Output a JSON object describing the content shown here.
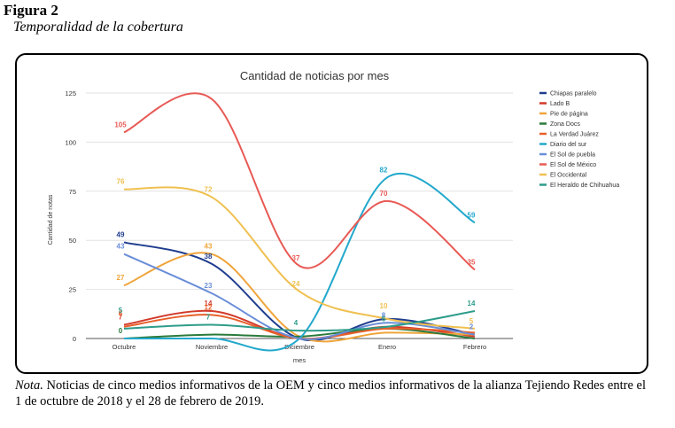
{
  "figure": {
    "label": "Figura 2",
    "subtitle": "Temporalidad de la cobertura"
  },
  "note": {
    "prefix": "Nota.",
    "text": " Noticias de cinco medios informativos de la OEM y cinco medios informativos de la alianza Tejiendo Redes entre el 1 de octubre de 2018 y el 28 de febrero de 2019."
  },
  "chart_data": {
    "type": "line",
    "title": "Cantidad de noticias por mes",
    "xlabel": "mes",
    "ylabel": "Cantidad de notas",
    "categories": [
      "Octubre",
      "Noviembre",
      "Diciembre",
      "Enero",
      "Febrero"
    ],
    "ylim": [
      0,
      125
    ],
    "yticks": [
      0,
      25,
      50,
      75,
      100,
      125
    ],
    "grid": true,
    "legend_position": "right",
    "series": [
      {
        "name": "Chiapas paralelo",
        "color": "#1f3d8f",
        "values": [
          49,
          38,
          0,
          10,
          2
        ],
        "labels": [
          true,
          true,
          false,
          false,
          false
        ]
      },
      {
        "name": "Lado B",
        "color": "#d23a2a",
        "values": [
          7,
          14,
          0,
          6,
          1
        ],
        "labels": [
          true,
          true,
          false,
          false,
          false
        ]
      },
      {
        "name": "Pie de página",
        "color": "#f0a43a",
        "values": [
          27,
          43,
          1,
          3,
          2
        ],
        "labels": [
          true,
          true,
          false,
          false,
          false
        ]
      },
      {
        "name": "Zona Docs",
        "color": "#2a7a3a",
        "values": [
          0,
          2,
          1,
          5,
          0
        ],
        "labels": [
          true,
          false,
          false,
          false,
          false
        ]
      },
      {
        "name": "La Verdad Juárez",
        "color": "#e8602a",
        "values": [
          6,
          12,
          0,
          5,
          3
        ],
        "labels": [
          true,
          true,
          false,
          false,
          false
        ]
      },
      {
        "name": "Diario del sur",
        "color": "#22a8cc",
        "values": [
          0,
          0,
          0,
          82,
          59
        ],
        "labels": [
          false,
          false,
          false,
          true,
          true
        ]
      },
      {
        "name": "El Sol de puebla",
        "color": "#6a8ed8",
        "values": [
          43,
          23,
          0,
          8,
          2
        ],
        "labels": [
          true,
          true,
          false,
          true,
          true
        ]
      },
      {
        "name": "El Sol de México",
        "color": "#e85a55",
        "values": [
          105,
          122,
          37,
          70,
          35
        ],
        "labels": [
          true,
          false,
          true,
          true,
          true
        ]
      },
      {
        "name": "El Occidental",
        "color": "#f0c050",
        "values": [
          76,
          72,
          24,
          10,
          5
        ],
        "labels": [
          true,
          true,
          true,
          true,
          true
        ]
      },
      {
        "name": "El Heraldo de Chihuahua",
        "color": "#2e9c8a",
        "values": [
          5,
          7,
          4,
          6,
          14
        ],
        "labels": [
          true,
          true,
          true,
          true,
          true
        ]
      }
    ]
  }
}
